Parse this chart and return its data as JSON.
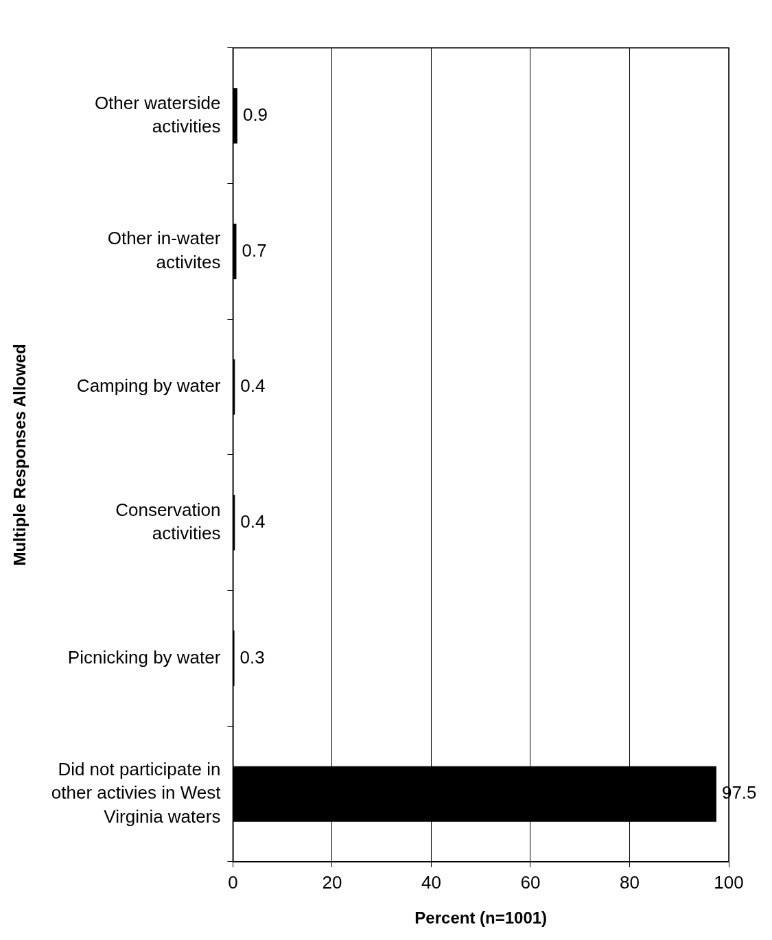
{
  "chart_data": {
    "type": "bar",
    "orientation": "horizontal",
    "categories": [
      "Other waterside activities",
      "Other in-water activites",
      "Camping by water",
      "Conservation activities",
      "Picnicking by water",
      "Did not participate in other activies in West Virginia waters"
    ],
    "values": [
      0.9,
      0.7,
      0.4,
      0.4,
      0.3,
      97.5
    ],
    "color": "#000000",
    "data_labels": true,
    "xlabel": "Percent (n=1001)",
    "ylabel": "Multiple Responses Allowed",
    "xlim": [
      0,
      100
    ],
    "xticks": [
      0,
      20,
      40,
      60,
      80,
      100
    ],
    "grid": "x",
    "legend": false
  }
}
